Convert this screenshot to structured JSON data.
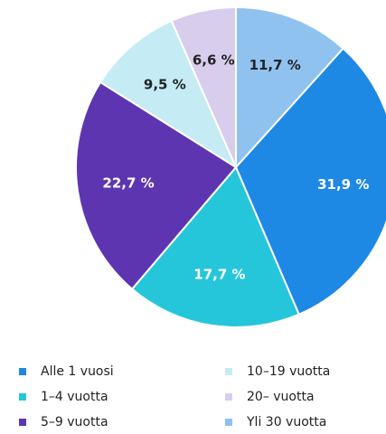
{
  "chart_data": {
    "type": "pie",
    "labels": [
      "Alle 1 vuosi",
      "1–4 vuotta",
      "5–9 vuotta",
      "10–19 vuotta",
      "20– vuotta",
      "Yli 30 vuotta"
    ],
    "values": [
      31.9,
      17.7,
      22.7,
      9.5,
      6.6,
      11.7
    ],
    "value_labels": [
      "31,9 %",
      "17,7 %",
      "22,7 %",
      "9,5 %",
      "6,6 %",
      "11,7 %"
    ],
    "colors": [
      "#1e88e5",
      "#26c6da",
      "#5e35b1",
      "#c5ecf5",
      "#d9cdee",
      "#90c2f0"
    ],
    "legend": "bottom"
  }
}
